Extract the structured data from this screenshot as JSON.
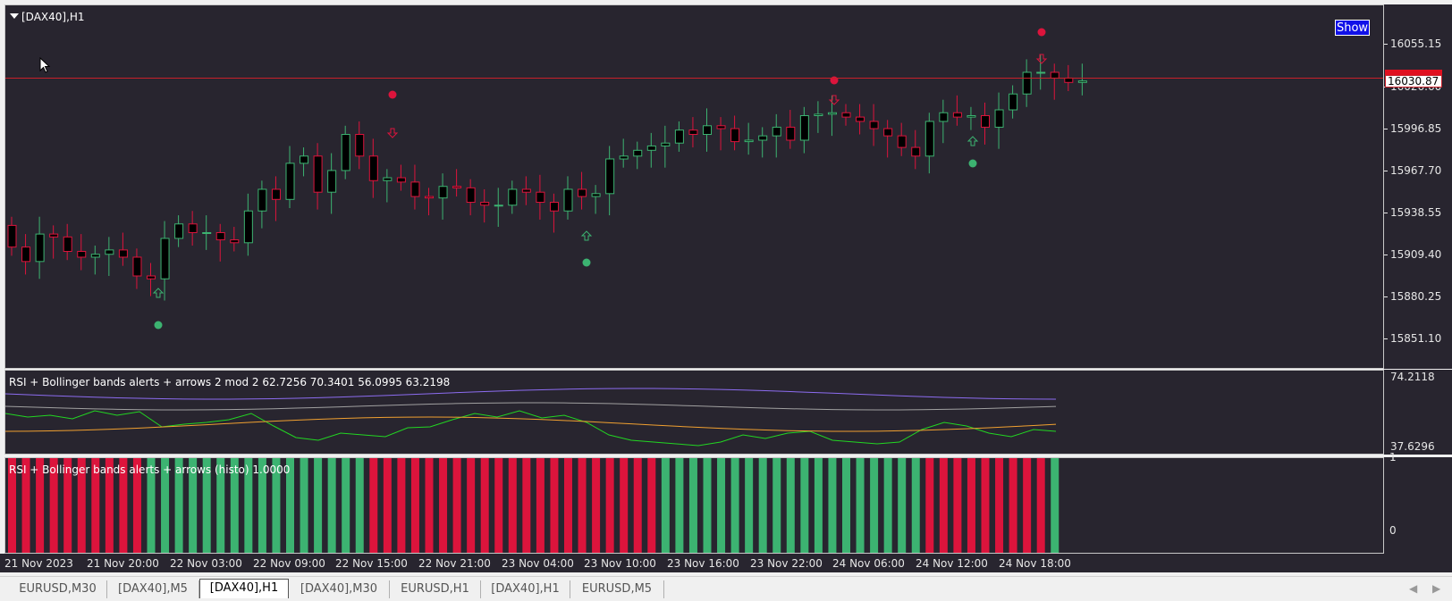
{
  "chart": {
    "symbol_label": "[DAX40],H1",
    "show_button_label": "Show",
    "current_price": "16030.87",
    "price_axis": [
      "16055.15",
      "16026.60",
      "15996.85",
      "15967.70",
      "15938.55",
      "15909.40",
      "15880.25",
      "15851.10"
    ],
    "colors": {
      "bull": "#3cb371",
      "bear": "#dc143c",
      "background": "#28252f",
      "price_line": "#c8202a"
    }
  },
  "rsi_indicator": {
    "title": "RSI + Bollinger bands alerts + arrows 2 mod 2 62.7256 70.3401 56.0995 63.2198",
    "axis_top": "74.2118",
    "axis_bottom": "37.6296"
  },
  "histo_indicator": {
    "title": "RSI + Bollinger bands alerts + arrows (histo) 1.0000",
    "axis_top": "1",
    "axis_bottom": "0"
  },
  "time_axis": [
    "21 Nov 2023",
    "21 Nov 20:00",
    "22 Nov 03:00",
    "22 Nov 09:00",
    "22 Nov 15:00",
    "22 Nov 21:00",
    "23 Nov 04:00",
    "23 Nov 10:00",
    "23 Nov 16:00",
    "23 Nov 22:00",
    "24 Nov 06:00",
    "24 Nov 12:00",
    "24 Nov 18:00"
  ],
  "tabs": [
    {
      "label": "EURUSD,M30",
      "active": false
    },
    {
      "label": "[DAX40],M5",
      "active": false
    },
    {
      "label": "[DAX40],H1",
      "active": true
    },
    {
      "label": "[DAX40],M30",
      "active": false
    },
    {
      "label": "EURUSD,H1",
      "active": false
    },
    {
      "label": "[DAX40],H1",
      "active": false
    },
    {
      "label": "EURUSD,M5",
      "active": false
    }
  ],
  "chart_data": {
    "type": "candlestick",
    "closes": [
      15915,
      15905,
      15924,
      15922,
      15912,
      15908,
      15910,
      15913,
      15908,
      15895,
      15893,
      15921,
      15931,
      15925,
      15925,
      15920,
      15918,
      15940,
      15955,
      15948,
      15973,
      15978,
      15953,
      15968,
      15993,
      15978,
      15961,
      15963,
      15960,
      15950,
      15949,
      15957,
      15956,
      15946,
      15944,
      15944,
      15955,
      15953,
      15946,
      15940,
      15955,
      15950,
      15952,
      15976,
      15978,
      15982,
      15985,
      15987,
      15996,
      15993,
      15999,
      15997,
      15988,
      15989,
      15992,
      15998,
      15989,
      16006,
      16007,
      16008,
      16005,
      16002,
      15997,
      15992,
      15984,
      15978,
      16002,
      16008,
      16005,
      16006,
      15998,
      16010,
      16021,
      16036,
      16036,
      16032,
      16029,
      16030
    ],
    "volume_bars_histo_colors": "bull/bear alternating per bar"
  }
}
